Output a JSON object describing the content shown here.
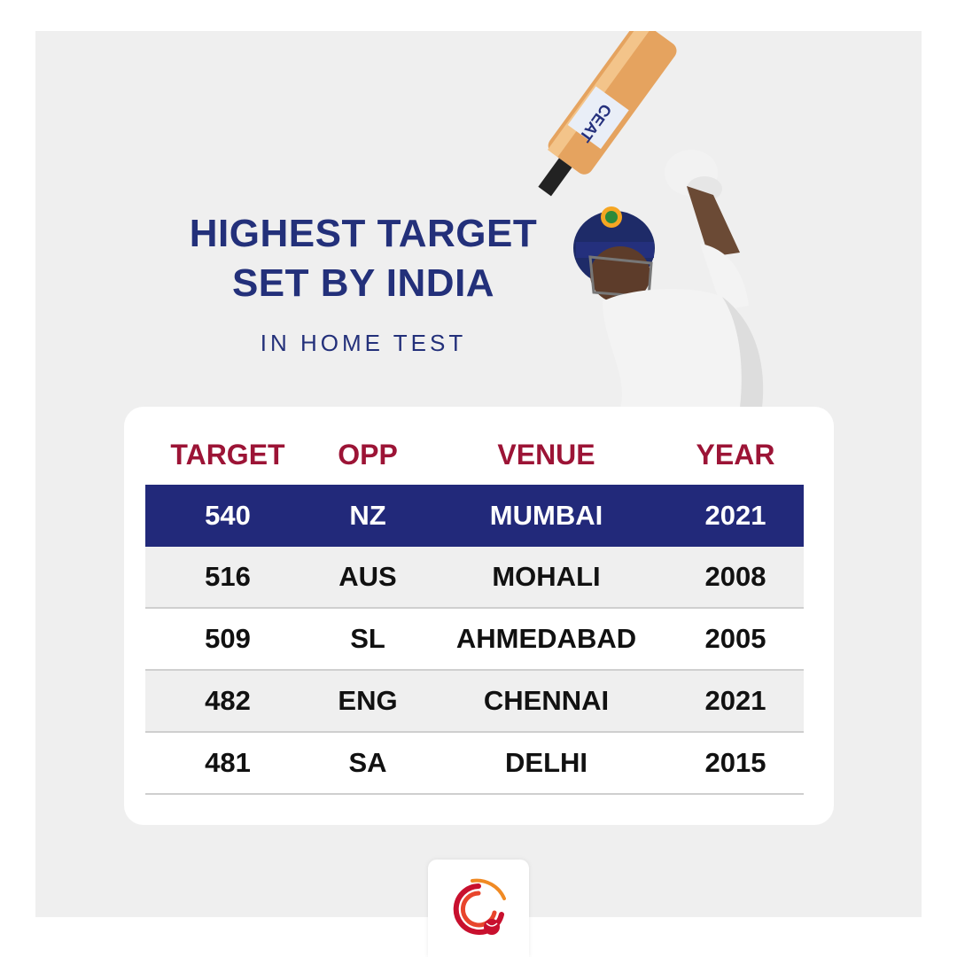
{
  "header": {
    "title_line1": "HIGHEST TARGET",
    "title_line2": "SET BY INDIA",
    "subtitle": "IN HOME TEST"
  },
  "table": {
    "columns": [
      "TARGET",
      "OPP",
      "VENUE",
      "YEAR"
    ],
    "rows": [
      {
        "target": "540",
        "opp": "NZ",
        "venue": "MUMBAI",
        "year": "2021",
        "highlight": true
      },
      {
        "target": "516",
        "opp": "AUS",
        "venue": "MOHALI",
        "year": "2008"
      },
      {
        "target": "509",
        "opp": "SL",
        "venue": "AHMEDABAD",
        "year": "2005"
      },
      {
        "target": "482",
        "opp": "ENG",
        "venue": "CHENNAI",
        "year": "2021"
      },
      {
        "target": "481",
        "opp": "SA",
        "venue": "DELHI",
        "year": "2015"
      }
    ]
  },
  "colors": {
    "title": "#23307a",
    "header_text": "#9c1436",
    "highlight_row": "#22297a",
    "panel_bg": "#efefef"
  },
  "icons": [
    "batsman-photo",
    "brand-logo-icon"
  ]
}
